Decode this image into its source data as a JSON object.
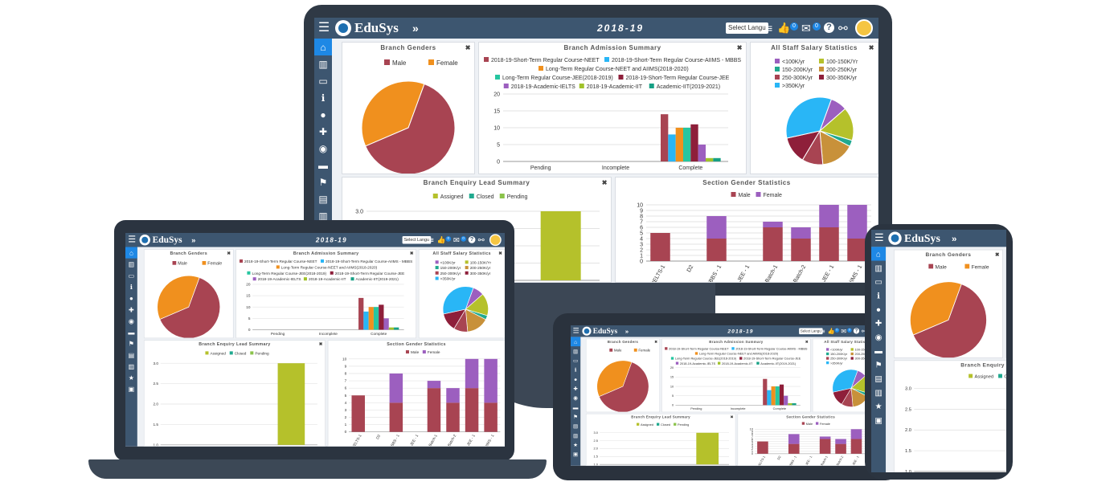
{
  "app": {
    "name": "EduSys",
    "expand_glyph": "»",
    "academic_year": "2018-19",
    "language_select": "Select Langu",
    "like_count": "0",
    "mail_count": "0"
  },
  "panels": {
    "branch_genders": "Branch Genders",
    "branch_admission": "Branch Admission Summary",
    "salary": "All Staff Salary Statistics",
    "enquiry": "Branch Enquiry Lead Summary",
    "section_gender": "Section Gender Statistics",
    "close_glyph": "✖"
  },
  "colors": {
    "topbar": "#3d5670",
    "male": "#a84452",
    "female": "#f0901e",
    "assigned": "#b5c12b",
    "closed": "#20a98f",
    "pending": "#8bc34a"
  },
  "chart_data": [
    {
      "type": "pie",
      "title": "Branch Genders",
      "labels": [
        "Male",
        "Female"
      ],
      "values": [
        63,
        37
      ],
      "colors": [
        "#a84452",
        "#f0901e"
      ]
    },
    {
      "type": "bar",
      "title": "Branch Admission Summary",
      "categories": [
        "Pending",
        "Incomplete",
        "Complete"
      ],
      "yticks": [
        "0",
        "5",
        "10",
        "15",
        "20"
      ],
      "ylim": [
        0,
        20
      ],
      "series": [
        {
          "name": "2018-19-Short-Term Regular Course-NEET",
          "color": "#a84452",
          "values": [
            0,
            0,
            14
          ]
        },
        {
          "name": "2018-19-Short-Term Regular Course-AIIMS - MBBS",
          "color": "#29b6f6",
          "values": [
            0,
            0,
            8
          ]
        },
        {
          "name": "Long-Term Regular Course-NEET and AIIMS(2018-2020)",
          "color": "#f0901e",
          "values": [
            0,
            0,
            10
          ]
        },
        {
          "name": "Long-Term Regular Course-JEE(2018-2019)",
          "color": "#26c6a0",
          "values": [
            0,
            0,
            10
          ]
        },
        {
          "name": "2018-19-Short-Term Regular Course-JEE",
          "color": "#8e1f3a",
          "values": [
            0,
            0,
            11
          ]
        },
        {
          "name": "2018-19-Academic-IELTS",
          "color": "#9c5fbf",
          "values": [
            0,
            0,
            5
          ]
        },
        {
          "name": "2018-19-Academic-IIT",
          "color": "#a0c22a",
          "values": [
            0,
            0,
            1
          ]
        },
        {
          "name": "Academic-IIT(2019-2021)",
          "color": "#16a085",
          "values": [
            0,
            0,
            1
          ]
        }
      ]
    },
    {
      "type": "pie",
      "title": "All Staff Salary Statistics",
      "labels": [
        "<100K/yr",
        "100-150K/Yr",
        "150-200K/yr",
        "200-250K/yr",
        "250-300K/yr",
        "300-350K/yr",
        ">350K/yr"
      ],
      "values": [
        8,
        16,
        3,
        16,
        10,
        13,
        34
      ],
      "colors": [
        "#9c5fbf",
        "#b5c12b",
        "#20a98f",
        "#c8913a",
        "#a84452",
        "#8e1f3a",
        "#29b6f6"
      ]
    },
    {
      "type": "bar",
      "title": "Branch Enquiry Lead Summary",
      "categories": [
        "",
        "",
        ""
      ],
      "yticks": [
        "1.0",
        "1.5",
        "2.0",
        "2.5",
        "3.0"
      ],
      "ylim": [
        1,
        3
      ],
      "series": [
        {
          "name": "Assigned",
          "color": "#b5c12b",
          "values": [
            1,
            1,
            3
          ]
        },
        {
          "name": "Closed",
          "color": "#20a98f",
          "values": [
            0,
            0,
            0
          ]
        },
        {
          "name": "Pending",
          "color": "#8bc34a",
          "values": [
            0,
            0,
            0
          ]
        }
      ]
    },
    {
      "type": "bar",
      "title": "Section Gender Statistics",
      "stacked": true,
      "categories": [
        "IELTS-1",
        "D2",
        "MBBS - 1",
        "JEE - 1",
        "Batch-1",
        "Batch-2",
        "JEE - 1",
        "AIIMS - 1"
      ],
      "yticks": [
        "0",
        "1",
        "2",
        "3",
        "4",
        "5",
        "6",
        "7",
        "8",
        "9",
        "10"
      ],
      "ylim": [
        0,
        10
      ],
      "series": [
        {
          "name": "Male",
          "color": "#a84452",
          "values": [
            5,
            0,
            4,
            0,
            6,
            4,
            6,
            4
          ]
        },
        {
          "name": "Female",
          "color": "#9c5fbf",
          "values": [
            0,
            0,
            4,
            0,
            1,
            2,
            4,
            6
          ]
        }
      ]
    }
  ]
}
